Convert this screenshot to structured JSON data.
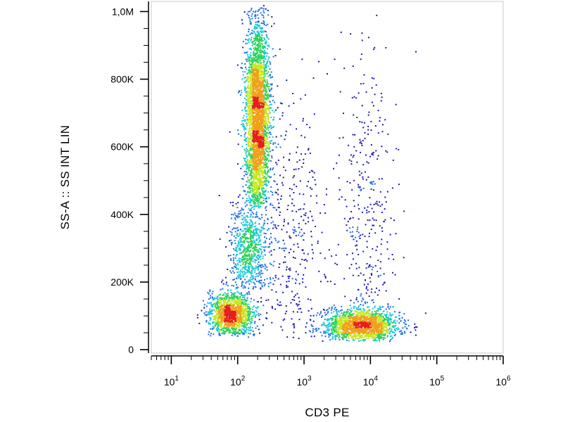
{
  "chart_data": {
    "type": "scatter",
    "subtype": "flow-cytometry density dot plot",
    "xlabel": "CD3 PE",
    "ylabel": "SS-A :: SS INT LIN",
    "x_scale": "log",
    "xlim": [
      5,
      1000000
    ],
    "x_ticks": [
      {
        "value": 10,
        "base": "10",
        "exp": "1"
      },
      {
        "value": 100,
        "base": "10",
        "exp": "2"
      },
      {
        "value": 1000,
        "base": "10",
        "exp": "3"
      },
      {
        "value": 10000,
        "base": "10",
        "exp": "4"
      },
      {
        "value": 100000,
        "base": "10",
        "exp": "5"
      },
      {
        "value": 1000000,
        "base": "10",
        "exp": "6"
      }
    ],
    "y_scale": "linear",
    "ylim": [
      -10000,
      1030000
    ],
    "y_ticks": [
      {
        "value": 0,
        "label": "0"
      },
      {
        "value": 200000,
        "label": "200K"
      },
      {
        "value": 400000,
        "label": "400K"
      },
      {
        "value": 600000,
        "label": "600K"
      },
      {
        "value": 800000,
        "label": "800K"
      },
      {
        "value": 1000000,
        "label": "1,0M"
      }
    ],
    "grid": false,
    "legend": "none",
    "color_scale": [
      "#1a1ab4",
      "#1f6fe6",
      "#19c8d8",
      "#2ed35a",
      "#c8e61e",
      "#f0a01a",
      "#e61e1e"
    ],
    "populations": [
      {
        "x_center": 200,
        "x_log_sd": 0.09,
        "y_center": 680000,
        "y_sd": 150000,
        "y_min": 420000,
        "y_max": 1020000,
        "count": 3300
      },
      {
        "x_center": 150,
        "x_log_sd": 0.13,
        "y_center": 300000,
        "y_sd": 70000,
        "y_min": 180000,
        "y_max": 460000,
        "count": 750
      },
      {
        "x_center": 80,
        "x_log_sd": 0.17,
        "y_center": 105000,
        "y_sd": 32000,
        "y_min": 40000,
        "y_max": 210000,
        "count": 1400
      },
      {
        "x_center": 7000,
        "x_log_sd": 0.28,
        "y_center": 72000,
        "y_sd": 24000,
        "y_min": 25000,
        "y_max": 160000,
        "count": 1700
      },
      {
        "x_center": 9000,
        "x_log_sd": 0.22,
        "y_center": 350000,
        "y_sd": 260000,
        "y_min": 120000,
        "y_max": 990000,
        "count": 320
      },
      {
        "x_center": 600,
        "x_log_sd": 0.3,
        "y_center": 300000,
        "y_sd": 230000,
        "y_min": 30000,
        "y_max": 1000000,
        "count": 380
      }
    ]
  }
}
